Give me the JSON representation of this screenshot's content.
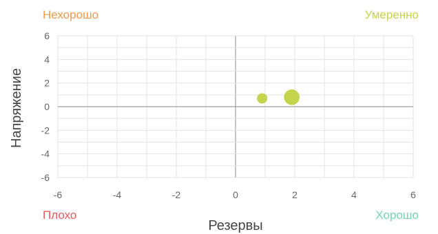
{
  "quadrants": {
    "top_left": "Нехорошо",
    "top_right": "Умеренно",
    "bottom_left": "Плохо",
    "bottom_right": "Хорошо"
  },
  "colors": {
    "bubble": "#c5d44d",
    "grid": "#e3e3e3",
    "zero_axis": "#9e9e9e",
    "top_left": "#ef9a4c",
    "top_right": "#c5d44d",
    "bottom_left": "#e8595b",
    "bottom_right": "#76d2b4"
  },
  "chart_data": {
    "type": "scatter",
    "xlabel": "Резервы",
    "ylabel": "Напряжение",
    "xlim": [
      -6,
      6
    ],
    "ylim": [
      -6,
      6
    ],
    "xticks": [
      "-6",
      "-4",
      "-2",
      "0",
      "2",
      "4",
      "6"
    ],
    "yticks": [
      "6",
      "4",
      "2",
      "0",
      "-2",
      "-4",
      "-6"
    ],
    "grid": true,
    "points": [
      {
        "x": 0.9,
        "y": 0.7,
        "size": 1
      },
      {
        "x": 1.9,
        "y": 0.8,
        "size": 2.3
      }
    ]
  }
}
